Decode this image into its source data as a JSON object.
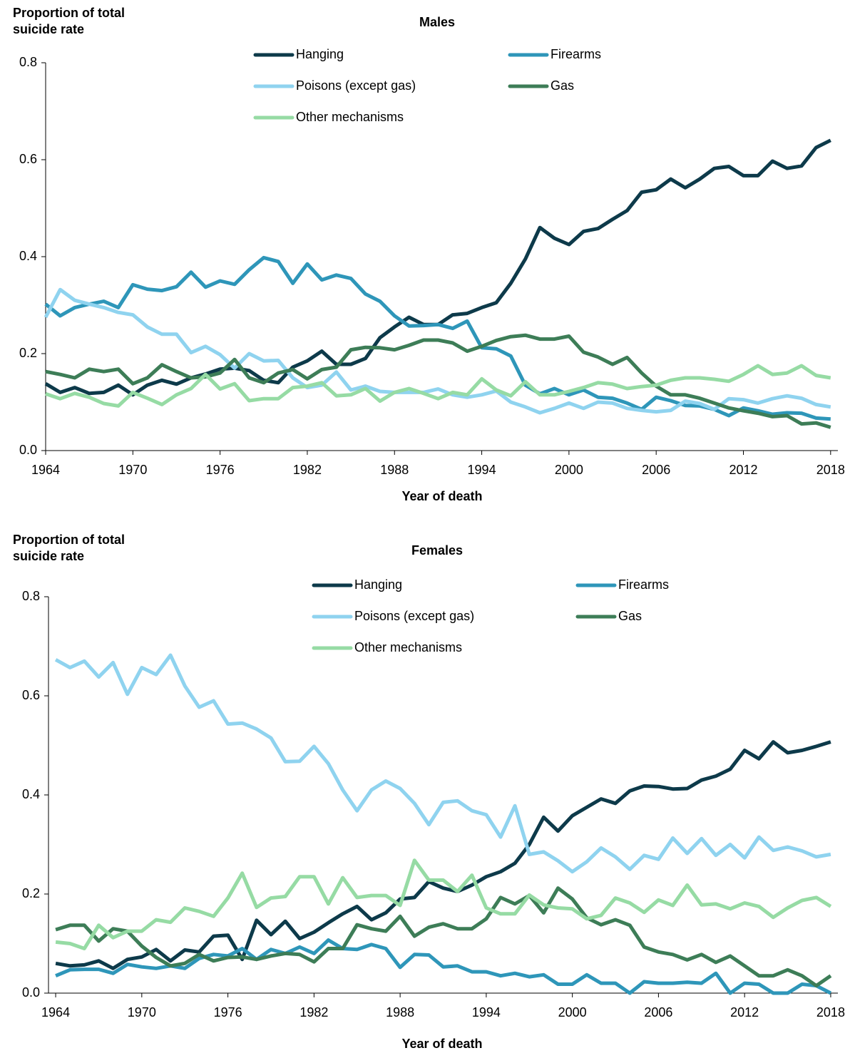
{
  "chart_data": [
    {
      "type": "line",
      "title": "Males",
      "x_label": "Year of death",
      "y_label": "Proportion of total suicide rate",
      "x": [
        1964,
        1965,
        1966,
        1967,
        1968,
        1969,
        1970,
        1971,
        1972,
        1973,
        1974,
        1975,
        1976,
        1977,
        1978,
        1979,
        1980,
        1981,
        1982,
        1983,
        1984,
        1985,
        1986,
        1987,
        1988,
        1989,
        1990,
        1991,
        1992,
        1993,
        1994,
        1995,
        1996,
        1997,
        1998,
        1999,
        2000,
        2001,
        2002,
        2003,
        2004,
        2005,
        2006,
        2007,
        2008,
        2009,
        2010,
        2011,
        2012,
        2013,
        2014,
        2015,
        2016,
        2017,
        2018
      ],
      "xlim": [
        1964,
        2018.5
      ],
      "xticks": [
        1964,
        1970,
        1976,
        1982,
        1988,
        1994,
        2000,
        2006,
        2012,
        2018
      ],
      "ylim": [
        0,
        0.8
      ],
      "yticks": [
        {
          "value": 0,
          "label": "0.0"
        },
        0.2,
        0.4,
        0.6,
        0.8
      ],
      "series": [
        {
          "name": "Hanging",
          "color": "#0d3a4a",
          "values": [
            0.138,
            0.12,
            0.13,
            0.118,
            0.12,
            0.135,
            0.115,
            0.135,
            0.145,
            0.137,
            0.15,
            0.158,
            0.168,
            0.17,
            0.165,
            0.145,
            0.14,
            0.172,
            0.185,
            0.205,
            0.178,
            0.178,
            0.19,
            0.233,
            0.255,
            0.275,
            0.26,
            0.26,
            0.28,
            0.283,
            0.295,
            0.305,
            0.345,
            0.395,
            0.46,
            0.438,
            0.425,
            0.452,
            0.458,
            0.477,
            0.495,
            0.533,
            0.538,
            0.56,
            0.542,
            0.56,
            0.582,
            0.586,
            0.567,
            0.567,
            0.597,
            0.582,
            0.587,
            0.625,
            0.64
          ]
        },
        {
          "name": "Firearms",
          "color": "#2e96b9",
          "values": [
            0.302,
            0.278,
            0.295,
            0.302,
            0.308,
            0.295,
            0.342,
            0.333,
            0.33,
            0.338,
            0.368,
            0.337,
            0.35,
            0.343,
            0.373,
            0.398,
            0.39,
            0.345,
            0.385,
            0.352,
            0.362,
            0.355,
            0.323,
            0.308,
            0.278,
            0.257,
            0.258,
            0.26,
            0.252,
            0.267,
            0.212,
            0.21,
            0.195,
            0.135,
            0.117,
            0.128,
            0.115,
            0.125,
            0.11,
            0.108,
            0.098,
            0.085,
            0.11,
            0.103,
            0.093,
            0.092,
            0.085,
            0.072,
            0.088,
            0.082,
            0.075,
            0.078,
            0.077,
            0.067,
            0.065
          ]
        },
        {
          "name": "Poisons (except gas)",
          "color": "#8fd3ef",
          "values": [
            0.275,
            0.332,
            0.31,
            0.302,
            0.295,
            0.285,
            0.28,
            0.255,
            0.24,
            0.24,
            0.202,
            0.215,
            0.198,
            0.17,
            0.2,
            0.185,
            0.186,
            0.15,
            0.13,
            0.135,
            0.162,
            0.125,
            0.133,
            0.122,
            0.12,
            0.12,
            0.12,
            0.127,
            0.115,
            0.11,
            0.115,
            0.123,
            0.1,
            0.09,
            0.078,
            0.087,
            0.098,
            0.087,
            0.1,
            0.098,
            0.087,
            0.083,
            0.08,
            0.083,
            0.102,
            0.097,
            0.085,
            0.107,
            0.105,
            0.098,
            0.107,
            0.113,
            0.108,
            0.095,
            0.09
          ]
        },
        {
          "name": "Gas",
          "color": "#3d7d57",
          "values": [
            0.163,
            0.157,
            0.15,
            0.168,
            0.163,
            0.168,
            0.138,
            0.15,
            0.177,
            0.163,
            0.15,
            0.152,
            0.16,
            0.188,
            0.15,
            0.14,
            0.16,
            0.167,
            0.148,
            0.167,
            0.172,
            0.208,
            0.213,
            0.212,
            0.208,
            0.217,
            0.228,
            0.228,
            0.222,
            0.205,
            0.215,
            0.227,
            0.235,
            0.238,
            0.23,
            0.23,
            0.236,
            0.203,
            0.193,
            0.178,
            0.192,
            0.16,
            0.133,
            0.115,
            0.115,
            0.108,
            0.098,
            0.088,
            0.082,
            0.077,
            0.07,
            0.072,
            0.055,
            0.057,
            0.048
          ]
        },
        {
          "name": "Other mechanisms",
          "color": "#96dba4",
          "values": [
            0.117,
            0.107,
            0.118,
            0.11,
            0.097,
            0.092,
            0.12,
            0.108,
            0.095,
            0.115,
            0.128,
            0.157,
            0.127,
            0.138,
            0.103,
            0.107,
            0.107,
            0.13,
            0.133,
            0.14,
            0.113,
            0.115,
            0.128,
            0.102,
            0.12,
            0.128,
            0.118,
            0.107,
            0.12,
            0.115,
            0.148,
            0.125,
            0.113,
            0.142,
            0.115,
            0.115,
            0.122,
            0.13,
            0.14,
            0.137,
            0.128,
            0.132,
            0.135,
            0.145,
            0.15,
            0.15,
            0.147,
            0.143,
            0.157,
            0.175,
            0.157,
            0.16,
            0.175,
            0.155,
            0.15
          ]
        }
      ]
    },
    {
      "type": "line",
      "title": "Females",
      "x_label": "Year of death",
      "y_label": "Proportion of total suicide rate",
      "x": [
        1964,
        1965,
        1966,
        1967,
        1968,
        1969,
        1970,
        1971,
        1972,
        1973,
        1974,
        1975,
        1976,
        1977,
        1978,
        1979,
        1980,
        1981,
        1982,
        1983,
        1984,
        1985,
        1986,
        1987,
        1988,
        1989,
        1990,
        1991,
        1992,
        1993,
        1994,
        1995,
        1996,
        1997,
        1998,
        1999,
        2000,
        2001,
        2002,
        2003,
        2004,
        2005,
        2006,
        2007,
        2008,
        2009,
        2010,
        2011,
        2012,
        2013,
        2014,
        2015,
        2016,
        2017,
        2018
      ],
      "xlim": [
        1963.5,
        2018.5
      ],
      "xticks": [
        1964,
        1970,
        1976,
        1982,
        1988,
        1994,
        2000,
        2006,
        2012,
        2018
      ],
      "ylim": [
        0,
        0.8
      ],
      "yticks": [
        {
          "value": 0,
          "label": "0.0"
        },
        0.2,
        0.4,
        0.6,
        0.8
      ],
      "series": [
        {
          "name": "Hanging",
          "color": "#0d3a4a",
          "values": [
            0.06,
            0.055,
            0.057,
            0.065,
            0.05,
            0.068,
            0.073,
            0.088,
            0.065,
            0.087,
            0.083,
            0.115,
            0.117,
            0.068,
            0.147,
            0.118,
            0.145,
            0.11,
            0.123,
            0.142,
            0.16,
            0.175,
            0.148,
            0.162,
            0.19,
            0.193,
            0.225,
            0.212,
            0.205,
            0.218,
            0.235,
            0.245,
            0.262,
            0.3,
            0.355,
            0.327,
            0.358,
            0.375,
            0.392,
            0.383,
            0.408,
            0.418,
            0.417,
            0.412,
            0.413,
            0.43,
            0.438,
            0.452,
            0.49,
            0.473,
            0.507,
            0.485,
            0.49,
            0.498,
            0.507
          ]
        },
        {
          "name": "Firearms",
          "color": "#2e96b9",
          "values": [
            0.035,
            0.047,
            0.048,
            0.048,
            0.04,
            0.058,
            0.053,
            0.05,
            0.055,
            0.05,
            0.07,
            0.078,
            0.075,
            0.09,
            0.068,
            0.088,
            0.08,
            0.093,
            0.08,
            0.107,
            0.09,
            0.088,
            0.098,
            0.09,
            0.052,
            0.078,
            0.077,
            0.053,
            0.055,
            0.043,
            0.043,
            0.035,
            0.04,
            0.033,
            0.037,
            0.018,
            0.018,
            0.037,
            0.02,
            0.02,
            0,
            0.023,
            0.02,
            0.02,
            0.022,
            0.02,
            0.04,
            0,
            0.02,
            0.018,
            0,
            0,
            0.018,
            0.015,
            0
          ]
        },
        {
          "name": "Poisons (except gas)",
          "color": "#8fd3ef",
          "values": [
            0.673,
            0.657,
            0.67,
            0.638,
            0.667,
            0.603,
            0.657,
            0.643,
            0.682,
            0.62,
            0.577,
            0.59,
            0.543,
            0.545,
            0.533,
            0.515,
            0.467,
            0.468,
            0.498,
            0.463,
            0.41,
            0.368,
            0.41,
            0.428,
            0.413,
            0.383,
            0.34,
            0.385,
            0.388,
            0.368,
            0.36,
            0.315,
            0.378,
            0.28,
            0.285,
            0.267,
            0.245,
            0.265,
            0.293,
            0.275,
            0.25,
            0.278,
            0.27,
            0.313,
            0.282,
            0.312,
            0.278,
            0.3,
            0.273,
            0.315,
            0.288,
            0.295,
            0.287,
            0.275,
            0.28
          ]
        },
        {
          "name": "Gas",
          "color": "#3d7d57",
          "values": [
            0.128,
            0.137,
            0.137,
            0.105,
            0.13,
            0.125,
            0.095,
            0.072,
            0.055,
            0.06,
            0.078,
            0.065,
            0.072,
            0.073,
            0.068,
            0.075,
            0.08,
            0.078,
            0.063,
            0.09,
            0.09,
            0.138,
            0.13,
            0.125,
            0.155,
            0.115,
            0.133,
            0.14,
            0.13,
            0.13,
            0.15,
            0.193,
            0.18,
            0.197,
            0.162,
            0.212,
            0.19,
            0.152,
            0.138,
            0.148,
            0.137,
            0.093,
            0.083,
            0.078,
            0.067,
            0.078,
            0.062,
            0.075,
            0.055,
            0.035,
            0.035,
            0.047,
            0.035,
            0.015,
            0.035
          ]
        },
        {
          "name": "Other mechanisms",
          "color": "#96dba4",
          "values": [
            0.103,
            0.1,
            0.09,
            0.137,
            0.112,
            0.125,
            0.125,
            0.148,
            0.143,
            0.172,
            0.165,
            0.155,
            0.192,
            0.242,
            0.173,
            0.192,
            0.195,
            0.235,
            0.235,
            0.18,
            0.233,
            0.193,
            0.197,
            0.197,
            0.177,
            0.268,
            0.228,
            0.228,
            0.205,
            0.238,
            0.172,
            0.16,
            0.16,
            0.198,
            0.178,
            0.172,
            0.17,
            0.15,
            0.157,
            0.192,
            0.182,
            0.163,
            0.188,
            0.177,
            0.218,
            0.178,
            0.18,
            0.17,
            0.182,
            0.175,
            0.153,
            0.172,
            0.187,
            0.193,
            0.175
          ]
        }
      ]
    }
  ]
}
